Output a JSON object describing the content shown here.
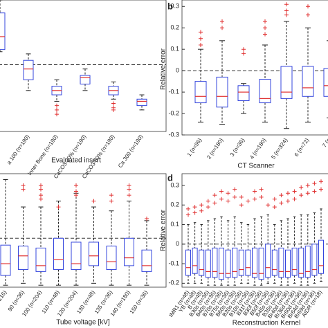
{
  "chart_data": [
    {
      "type": "box",
      "xlabel": "Evaluated insert",
      "ylim": [
        -0.31,
        0.3
      ],
      "yticks": [],
      "hline": 0,
      "box_color": "#3344dd",
      "median_color": "#e03030",
      "flier_color": "#e03030",
      "categories": [
        null,
        "a 100 (n=190)",
        "Inner Bone (n=190)",
        "CaCO3 30% (n=190)",
        "CaCO3 50% (n=190)",
        "Ca 300 (n=190)"
      ],
      "boxes": [
        {
          "whislo": 0.06,
          "q1": 0.07,
          "med": 0.13,
          "q3": 0.24,
          "whishi": 0.3,
          "fliers": []
        },
        {
          "whislo": -0.12,
          "q1": -0.07,
          "med": -0.02,
          "q3": 0.02,
          "whishi": 0.05,
          "fliers": []
        },
        {
          "whislo": -0.17,
          "q1": -0.14,
          "med": -0.12,
          "q3": -0.1,
          "whishi": -0.07,
          "fliers": [
            -0.19,
            -0.21,
            -0.23
          ]
        },
        {
          "whislo": -0.12,
          "q1": -0.09,
          "med": -0.06,
          "q3": -0.05,
          "whishi": -0.02,
          "fliers": []
        },
        {
          "whislo": -0.16,
          "q1": -0.14,
          "med": -0.12,
          "q3": -0.1,
          "whishi": -0.08,
          "fliers": [
            -0.18,
            -0.2,
            -0.21
          ]
        },
        {
          "whislo": -0.21,
          "q1": -0.19,
          "med": -0.17,
          "q3": -0.16,
          "whishi": -0.14,
          "fliers": []
        }
      ]
    },
    {
      "type": "box",
      "label": "b",
      "xlabel": "CT Scanner",
      "ylabel": "Relative error",
      "ylim": [
        -0.3,
        0.33
      ],
      "yticks": [
        0.3,
        0.2,
        0.1,
        0,
        -0.1,
        -0.2,
        -0.3
      ],
      "hline": 0,
      "box_color": "#3344dd",
      "median_color": "#e03030",
      "flier_color": "#e03030",
      "categories": [
        "1 (n=96)",
        "2 (n=180)",
        "3 (n=36)",
        "4 (n=180)",
        "5 (n=324)",
        "6 (n=72)",
        "7 (n"
      ],
      "boxes": [
        {
          "whislo": -0.24,
          "q1": -0.15,
          "med": -0.12,
          "q3": -0.05,
          "whishi": 0.1,
          "fliers": [
            0.18,
            0.15,
            0.12
          ]
        },
        {
          "whislo": -0.25,
          "q1": -0.17,
          "med": -0.12,
          "q3": -0.03,
          "whishi": 0.14,
          "fliers": [
            0.23,
            0.2
          ]
        },
        {
          "whislo": -0.2,
          "q1": -0.14,
          "med": -0.1,
          "q3": -0.07,
          "whishi": -0.06,
          "fliers": [
            0.1,
            0.08
          ]
        },
        {
          "whislo": -0.24,
          "q1": -0.15,
          "med": -0.13,
          "q3": -0.04,
          "whishi": 0.12,
          "fliers": [
            0.23,
            0.2,
            0.17
          ]
        },
        {
          "whislo": -0.27,
          "q1": -0.13,
          "med": -0.1,
          "q3": 0.02,
          "whishi": 0.23,
          "fliers": [
            0.31,
            0.28,
            0.26
          ]
        },
        {
          "whislo": -0.24,
          "q1": -0.12,
          "med": -0.08,
          "q3": 0.02,
          "whishi": 0.2,
          "fliers": [
            0.3,
            0.26
          ]
        },
        {
          "whislo": -0.22,
          "q1": -0.12,
          "med": -0.07,
          "q3": 0.01,
          "whishi": 0.14,
          "fliers": []
        }
      ]
    },
    {
      "type": "box",
      "xlabel": "Tube voltage [kV]",
      "ylim": [
        -0.25,
        0.33
      ],
      "yticks": [],
      "hline": 0,
      "box_color": "#3344dd",
      "median_color": "#e03030",
      "flier_color": "#e03030",
      "categories": [
        "216)",
        "90 (n=36)",
        "100 (n=204)",
        "110 (n=48)",
        "120 (n=204)",
        "130 (n=48)",
        "135 (n=36)",
        "140 (n=180)",
        "150 (n=36)"
      ],
      "boxes": [
        {
          "whislo": -0.24,
          "q1": -0.19,
          "med": -0.13,
          "q3": -0.035,
          "whishi": 0.3,
          "fliers": []
        },
        {
          "whislo": -0.23,
          "q1": -0.16,
          "med": -0.09,
          "q3": -0.04,
          "whishi": 0.16,
          "fliers": [
            0.27,
            0.25
          ]
        },
        {
          "whislo": -0.24,
          "q1": -0.17,
          "med": -0.14,
          "q3": -0.05,
          "whishi": 0.16,
          "fliers": [
            0.27,
            0.25,
            0.22,
            0.2
          ]
        },
        {
          "whislo": -0.24,
          "q1": -0.16,
          "med": -0.11,
          "q3": 0,
          "whishi": 0.19,
          "fliers": [
            0.16
          ]
        },
        {
          "whislo": -0.24,
          "q1": -0.16,
          "med": -0.13,
          "q3": -0.02,
          "whishi": 0.23,
          "fliers": [
            0.27,
            0.24,
            0.22
          ]
        },
        {
          "whislo": -0.23,
          "q1": -0.14,
          "med": -0.09,
          "q3": -0.02,
          "whishi": 0.16,
          "fliers": [
            0.19
          ]
        },
        {
          "whislo": -0.24,
          "q1": -0.16,
          "med": -0.12,
          "q3": -0.04,
          "whishi": 0.14,
          "fliers": [
            0.22,
            0.19
          ]
        },
        {
          "whislo": -0.24,
          "q1": -0.14,
          "med": -0.1,
          "q3": 0,
          "whishi": 0.19,
          "fliers": [
            0.27,
            0.25,
            0.22
          ]
        },
        {
          "whislo": -0.24,
          "q1": -0.17,
          "med": -0.14,
          "q3": -0.06,
          "whishi": 0.09,
          "fliers": [
            0.1
          ]
        }
      ]
    },
    {
      "type": "box",
      "label": "d",
      "xlabel": "Reconstruction Kernel",
      "ylabel": "Relative error",
      "ylim": [
        -0.22,
        0.36
      ],
      "yticks": [
        0.3,
        0.2,
        0.1,
        0,
        -0.1,
        -0.2
      ],
      "hline": 0,
      "box_color": "#3344dd",
      "median_color": "#e03030",
      "flier_color": "#e03030",
      "categories": [
        "IMR1 (n=48)",
        "YB (n=48)",
        "B (n=48)",
        "B30s (n=36)",
        "B40s (n=36)",
        "B70s (n=36)",
        "B75s (n=36)",
        "B60s (n=36)",
        "B20s (n=36)",
        "B10s (n=36)",
        "B31f (n=36)",
        "B30f (n=36)",
        "B50f (n=36)",
        "B45s (n=36)",
        "B35s (n=36)",
        "Br40d (n=36)",
        "Br36d (n=36)",
        "Br60d (n=36)",
        "Br64d (n=36)",
        "Br69d (n=36)",
        "AIDR (n=18)"
      ],
      "boxes": [
        {
          "whislo": -0.2,
          "q1": -0.16,
          "med": -0.12,
          "q3": -0.03,
          "whishi": 0.1,
          "fliers": [
            0.18,
            0.15
          ]
        },
        {
          "whislo": -0.2,
          "q1": -0.15,
          "med": -0.11,
          "q3": -0.02,
          "whishi": 0.11,
          "fliers": [
            0.19,
            0.16
          ]
        },
        {
          "whislo": -0.2,
          "q1": -0.16,
          "med": -0.13,
          "q3": -0.03,
          "whishi": 0.1,
          "fliers": [
            0.2,
            0.17
          ]
        },
        {
          "whislo": -0.21,
          "q1": -0.17,
          "med": -0.14,
          "q3": -0.03,
          "whishi": 0.12,
          "fliers": [
            0.22,
            0.19
          ]
        },
        {
          "whislo": -0.21,
          "q1": -0.17,
          "med": -0.14,
          "q3": -0.02,
          "whishi": 0.13,
          "fliers": [
            0.25,
            0.21
          ]
        },
        {
          "whislo": -0.21,
          "q1": -0.18,
          "med": -0.15,
          "q3": -0.02,
          "whishi": 0.14,
          "fliers": [
            0.27,
            0.23
          ]
        },
        {
          "whislo": -0.21,
          "q1": -0.17,
          "med": -0.15,
          "q3": -0.03,
          "whishi": 0.12,
          "fliers": [
            0.26,
            0.22
          ]
        },
        {
          "whislo": -0.21,
          "q1": -0.17,
          "med": -0.14,
          "q3": -0.02,
          "whishi": 0.14,
          "fliers": [
            0.28,
            0.24
          ]
        },
        {
          "whislo": -0.2,
          "q1": -0.16,
          "med": -0.13,
          "q3": -0.03,
          "whishi": 0.11,
          "fliers": [
            0.24,
            0.2
          ]
        },
        {
          "whislo": -0.2,
          "q1": -0.16,
          "med": -0.12,
          "q3": -0.03,
          "whishi": 0.1,
          "fliers": [
            0.22
          ]
        },
        {
          "whislo": -0.21,
          "q1": -0.17,
          "med": -0.15,
          "q3": -0.02,
          "whishi": 0.13,
          "fliers": [
            0.27,
            0.23
          ]
        },
        {
          "whislo": -0.21,
          "q1": -0.18,
          "med": -0.15,
          "q3": -0.02,
          "whishi": 0.14,
          "fliers": [
            0.28,
            0.24
          ]
        },
        {
          "whislo": -0.2,
          "q1": -0.17,
          "med": -0.12,
          "q3": 0,
          "whishi": 0.15,
          "fliers": [
            0.2
          ]
        },
        {
          "whislo": -0.2,
          "q1": -0.16,
          "med": -0.13,
          "q3": -0.03,
          "whishi": 0.1,
          "fliers": [
            0.23,
            0.19
          ]
        },
        {
          "whislo": -0.21,
          "q1": -0.17,
          "med": -0.14,
          "q3": -0.02,
          "whishi": 0.12,
          "fliers": [
            0.25,
            0.21
          ]
        },
        {
          "whislo": -0.21,
          "q1": -0.17,
          "med": -0.14,
          "q3": -0.03,
          "whishi": 0.13,
          "fliers": [
            0.26,
            0.22
          ]
        },
        {
          "whislo": -0.2,
          "q1": -0.16,
          "med": -0.13,
          "q3": -0.02,
          "whishi": 0.14,
          "fliers": [
            0.27,
            0.23
          ]
        },
        {
          "whislo": -0.21,
          "q1": -0.17,
          "med": -0.15,
          "q3": -0.02,
          "whishi": 0.15,
          "fliers": [
            0.29,
            0.25
          ]
        },
        {
          "whislo": -0.21,
          "q1": -0.17,
          "med": -0.14,
          "q3": -0.01,
          "whishi": 0.15,
          "fliers": [
            0.3,
            0.26
          ]
        },
        {
          "whislo": -0.2,
          "q1": -0.16,
          "med": -0.13,
          "q3": 0,
          "whishi": 0.16,
          "fliers": [
            0.31,
            0.27
          ]
        },
        {
          "whislo": -0.19,
          "q1": -0.15,
          "med": -0.11,
          "q3": 0.02,
          "whishi": 0.18,
          "fliers": [
            0.32,
            0.28
          ]
        }
      ]
    }
  ]
}
